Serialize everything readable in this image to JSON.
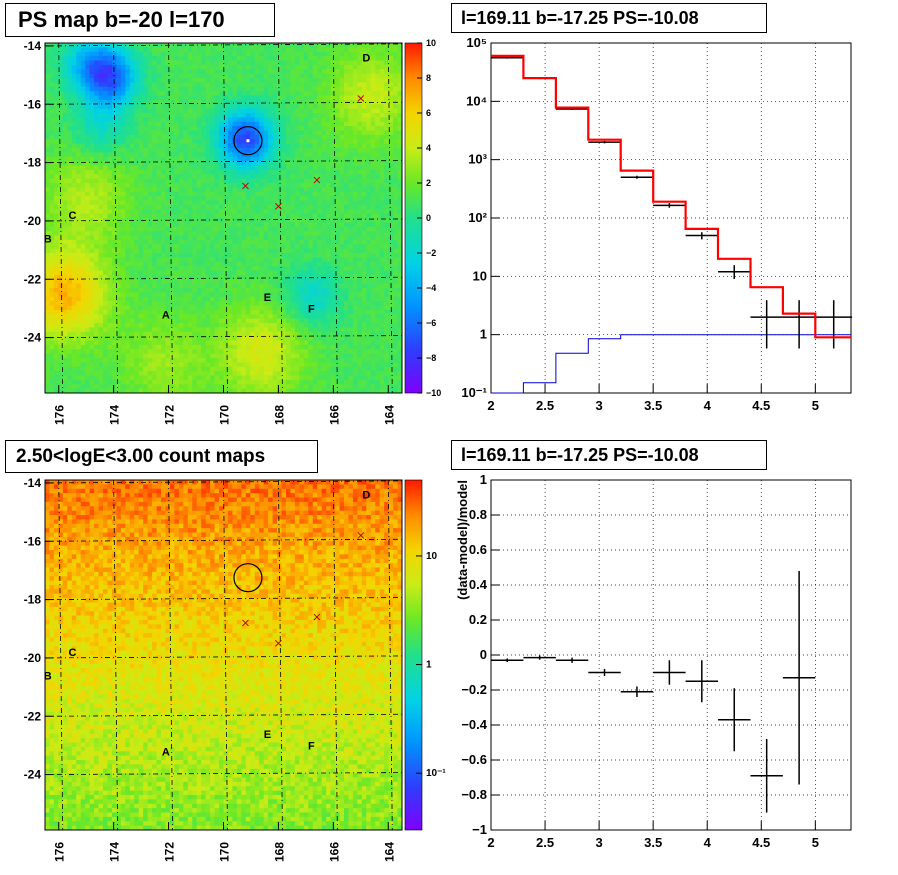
{
  "panels": {
    "tl": {
      "title": "PS map b=-20 l=170"
    },
    "tr": {
      "title": "l=169.11 b=-17.25 PS=-10.08"
    },
    "bl": {
      "title": "2.50<logE<3.00 count maps"
    },
    "br": {
      "title": "l=169.11 b=-17.25 PS=-10.08"
    }
  },
  "colors": {
    "red": "#ff0000",
    "blue": "#0000cc",
    "black": "#000000"
  },
  "chart_data": [
    {
      "id": "ps-map",
      "type": "heatmap",
      "title": "PS map b=-20 l=170",
      "xlim": [
        176.5,
        163.5
      ],
      "ylim": [
        -25.9,
        -13.9
      ],
      "xticks": [
        176,
        174,
        172,
        170,
        168,
        166,
        164
      ],
      "yticks": [
        -14,
        -16,
        -18,
        -20,
        -22,
        -24
      ],
      "colorbar": {
        "min": -10,
        "max": 10,
        "ticks": [
          10,
          8,
          6,
          4,
          2,
          0,
          -2,
          -4,
          -6,
          -8,
          -10
        ]
      },
      "features": [
        {
          "kind": "low",
          "l": 174.1,
          "b": -15.1,
          "value": -7.0
        },
        {
          "kind": "low",
          "l": 174.9,
          "b": -14.6,
          "value": -4.0
        },
        {
          "kind": "low",
          "l": 169.2,
          "b": -17.2,
          "value": -8.5
        },
        {
          "kind": "low",
          "l": 166.8,
          "b": -22.6,
          "value": -3.0
        },
        {
          "kind": "low",
          "l": 174.5,
          "b": -16.8,
          "value": -2.5
        },
        {
          "kind": "high",
          "l": 175.8,
          "b": -22.5,
          "value": 6.0
        },
        {
          "kind": "high",
          "l": 168.6,
          "b": -24.5,
          "value": 3.5
        },
        {
          "kind": "high",
          "l": 164.6,
          "b": -15.7,
          "value": 3.0
        },
        {
          "kind": "high",
          "l": 175.0,
          "b": -19.2,
          "value": 2.5
        },
        {
          "kind": "high",
          "l": 172.2,
          "b": -24.8,
          "value": 2.0
        }
      ],
      "circle": {
        "l": 169.11,
        "b": -17.25
      },
      "crosses": [
        {
          "l": 169.2,
          "b": -18.8
        },
        {
          "l": 168.0,
          "b": -19.5
        },
        {
          "l": 166.6,
          "b": -18.6
        },
        {
          "l": 165.0,
          "b": -15.8
        }
      ],
      "labels": [
        {
          "text": "A",
          "l": 172.1,
          "b": -23.2
        },
        {
          "text": "B",
          "l": 176.4,
          "b": -20.6
        },
        {
          "text": "C",
          "l": 175.5,
          "b": -19.8
        },
        {
          "text": "D",
          "l": 164.8,
          "b": -14.4
        },
        {
          "text": "E",
          "l": 168.4,
          "b": -22.6
        },
        {
          "text": "F",
          "l": 166.8,
          "b": -23.0
        }
      ]
    },
    {
      "id": "spectrum",
      "type": "line",
      "title": "l=169.11 b=-17.25 PS=-10.08",
      "xlim": [
        2,
        5.33
      ],
      "ylim": [
        0.1,
        100000
      ],
      "yscale": "log",
      "xticks": [
        2,
        2.5,
        3,
        3.5,
        4,
        4.5,
        5
      ],
      "xtick_labels": [
        "2",
        "2.5",
        "3",
        "3.5",
        "4",
        "4.5",
        "5"
      ],
      "yticks": [
        0.1,
        1,
        10,
        100,
        1000,
        10000,
        100000
      ],
      "ytick_labels": [
        "10⁻¹",
        "1",
        "10",
        "10²",
        "10³",
        "10⁴",
        "10⁵"
      ],
      "grid": true,
      "model_edges": [
        2,
        2.3,
        2.6,
        2.9,
        3.2,
        3.5,
        3.8,
        4.1,
        4.4,
        4.7,
        5.0,
        5.33
      ],
      "model_total": [
        60000,
        25000,
        7800,
        2200,
        650,
        190,
        65,
        20,
        6.5,
        2.3,
        0.9
      ],
      "model_ps": [
        0.1,
        0.15,
        0.48,
        0.85,
        1.0,
        1.0,
        1.0,
        1.0,
        1.0,
        1.0,
        1.0
      ],
      "data_points": [
        {
          "x": 2.15,
          "xerr": 0.15,
          "y": 56000,
          "lo": 54000,
          "hi": 58000
        },
        {
          "x": 2.45,
          "xerr": 0.15,
          "y": 25000,
          "lo": 24000,
          "hi": 26000
        },
        {
          "x": 2.75,
          "xerr": 0.15,
          "y": 7400,
          "lo": 7100,
          "hi": 7700
        },
        {
          "x": 3.05,
          "xerr": 0.15,
          "y": 2000,
          "lo": 1900,
          "hi": 2100
        },
        {
          "x": 3.35,
          "xerr": 0.15,
          "y": 500,
          "lo": 470,
          "hi": 530
        },
        {
          "x": 3.65,
          "xerr": 0.15,
          "y": 165,
          "lo": 150,
          "hi": 180
        },
        {
          "x": 3.95,
          "xerr": 0.15,
          "y": 50,
          "lo": 43,
          "hi": 57
        },
        {
          "x": 4.25,
          "xerr": 0.15,
          "y": 12,
          "lo": 9,
          "hi": 15.5
        },
        {
          "x": 4.55,
          "xerr": 0.15,
          "y": 2,
          "lo": 0.58,
          "hi": 3.9
        },
        {
          "x": 4.85,
          "xerr": 0.15,
          "y": 2,
          "lo": 0.58,
          "hi": 3.9
        },
        {
          "x": 5.17,
          "xerr": 0.17,
          "y": 2,
          "lo": 0.58,
          "hi": 3.9
        }
      ]
    },
    {
      "id": "count-map",
      "type": "heatmap",
      "title": "2.50<logE<3.00 count maps",
      "xlim": [
        176.5,
        163.5
      ],
      "ylim": [
        -25.9,
        -13.9
      ],
      "xticks": [
        176,
        174,
        172,
        170,
        168,
        166,
        164
      ],
      "yticks": [
        -14,
        -16,
        -18,
        -20,
        -22,
        -24
      ],
      "colorbar": {
        "scale": "log",
        "min": 0.03,
        "max": 50,
        "ticks": [
          10,
          1,
          0.1
        ],
        "tick_labels": [
          "10",
          "1",
          "10⁻¹"
        ]
      },
      "circle": {
        "l": 169.11,
        "b": -17.25
      },
      "crosses": [
        {
          "l": 169.2,
          "b": -18.8
        },
        {
          "l": 168.0,
          "b": -19.5
        },
        {
          "l": 166.6,
          "b": -18.6
        },
        {
          "l": 165.0,
          "b": -15.8
        }
      ],
      "labels": [
        {
          "text": "A",
          "l": 172.1,
          "b": -23.2
        },
        {
          "text": "B",
          "l": 176.4,
          "b": -20.6
        },
        {
          "text": "C",
          "l": 175.5,
          "b": -19.8
        },
        {
          "text": "D",
          "l": 164.8,
          "b": -14.4
        },
        {
          "text": "E",
          "l": 168.4,
          "b": -22.6
        },
        {
          "text": "F",
          "l": 166.8,
          "b": -23.0
        }
      ]
    },
    {
      "id": "residuals",
      "type": "scatter",
      "title": "l=169.11 b=-17.25 PS=-10.08",
      "ylabel": "(data-model)/model",
      "xlim": [
        2,
        5.33
      ],
      "ylim": [
        -1,
        1
      ],
      "xticks": [
        2,
        2.5,
        3,
        3.5,
        4,
        4.5,
        5
      ],
      "xtick_labels": [
        "2",
        "2.5",
        "3",
        "3.5",
        "4",
        "4.5",
        "5"
      ],
      "yticks": [
        -1,
        -0.8,
        -0.6,
        -0.4,
        -0.2,
        0,
        0.2,
        0.4,
        0.6,
        0.8,
        1
      ],
      "ytick_labels": [
        "−1",
        "−0.8",
        "−0.6",
        "−0.4",
        "−0.2",
        "0",
        "0.2",
        "0.4",
        "0.6",
        "0.8",
        "1"
      ],
      "grid": true,
      "points": [
        {
          "x": 2.15,
          "xerr": 0.15,
          "y": -0.03,
          "err": 0.01
        },
        {
          "x": 2.45,
          "xerr": 0.15,
          "y": -0.015,
          "err": 0.012
        },
        {
          "x": 2.75,
          "xerr": 0.15,
          "y": -0.03,
          "err": 0.015
        },
        {
          "x": 3.05,
          "xerr": 0.15,
          "y": -0.1,
          "err": 0.02
        },
        {
          "x": 3.35,
          "xerr": 0.15,
          "y": -0.21,
          "err": 0.03
        },
        {
          "x": 3.65,
          "xerr": 0.15,
          "y": -0.1,
          "err": 0.07
        },
        {
          "x": 3.95,
          "xerr": 0.15,
          "y": -0.15,
          "err": 0.12
        },
        {
          "x": 4.25,
          "xerr": 0.15,
          "y": -0.37,
          "err": 0.18
        },
        {
          "x": 4.55,
          "xerr": 0.15,
          "y": -0.69,
          "err": 0.21
        },
        {
          "x": 4.85,
          "xerr": 0.15,
          "y": -0.13,
          "err": 0.61
        }
      ]
    }
  ]
}
